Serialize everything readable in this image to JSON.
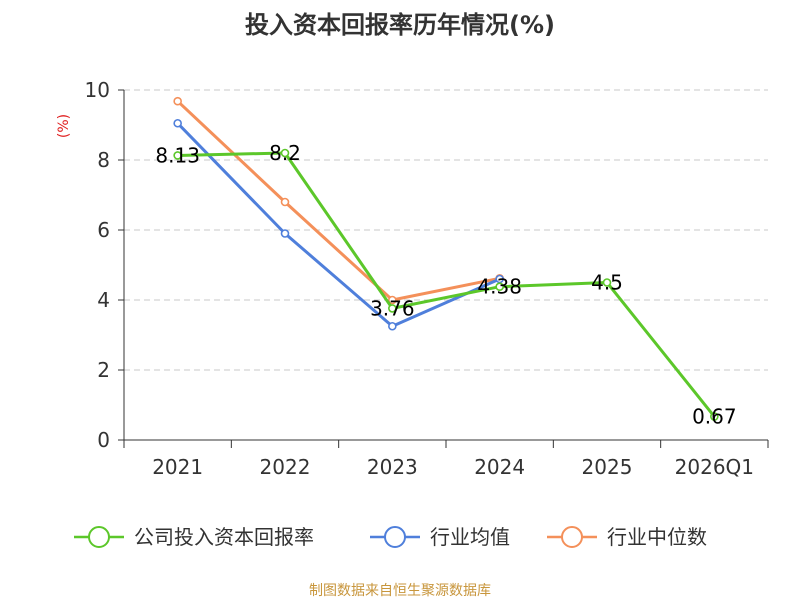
{
  "chart_data": {
    "type": "line",
    "title": "投入资本回报率历年情况(%)",
    "ylabel": "(%)",
    "xlabel": "",
    "categories": [
      "2021",
      "2022",
      "2023",
      "2024",
      "2025",
      "2026Q1"
    ],
    "ylim": [
      0,
      10
    ],
    "yticks": [
      0,
      2,
      4,
      6,
      8,
      10
    ],
    "grid": true,
    "legend_position": "bottom",
    "series": [
      {
        "name": "公司投入资本回报率",
        "color": "#5cc72a",
        "values": [
          8.13,
          8.2,
          3.76,
          4.38,
          4.5,
          0.67
        ],
        "labels": [
          "8.13",
          "8.2",
          "3.76",
          "4.38",
          "4.5",
          "0.67"
        ]
      },
      {
        "name": "行业均值",
        "color": "#4f7fdb",
        "values": [
          9.05,
          5.9,
          3.25,
          4.6,
          null,
          null
        ]
      },
      {
        "name": "行业中位数",
        "color": "#f4905a",
        "values": [
          9.68,
          6.8,
          4.0,
          4.62,
          null,
          null
        ]
      }
    ],
    "source": "制图数据来自恒生聚源数据库"
  }
}
